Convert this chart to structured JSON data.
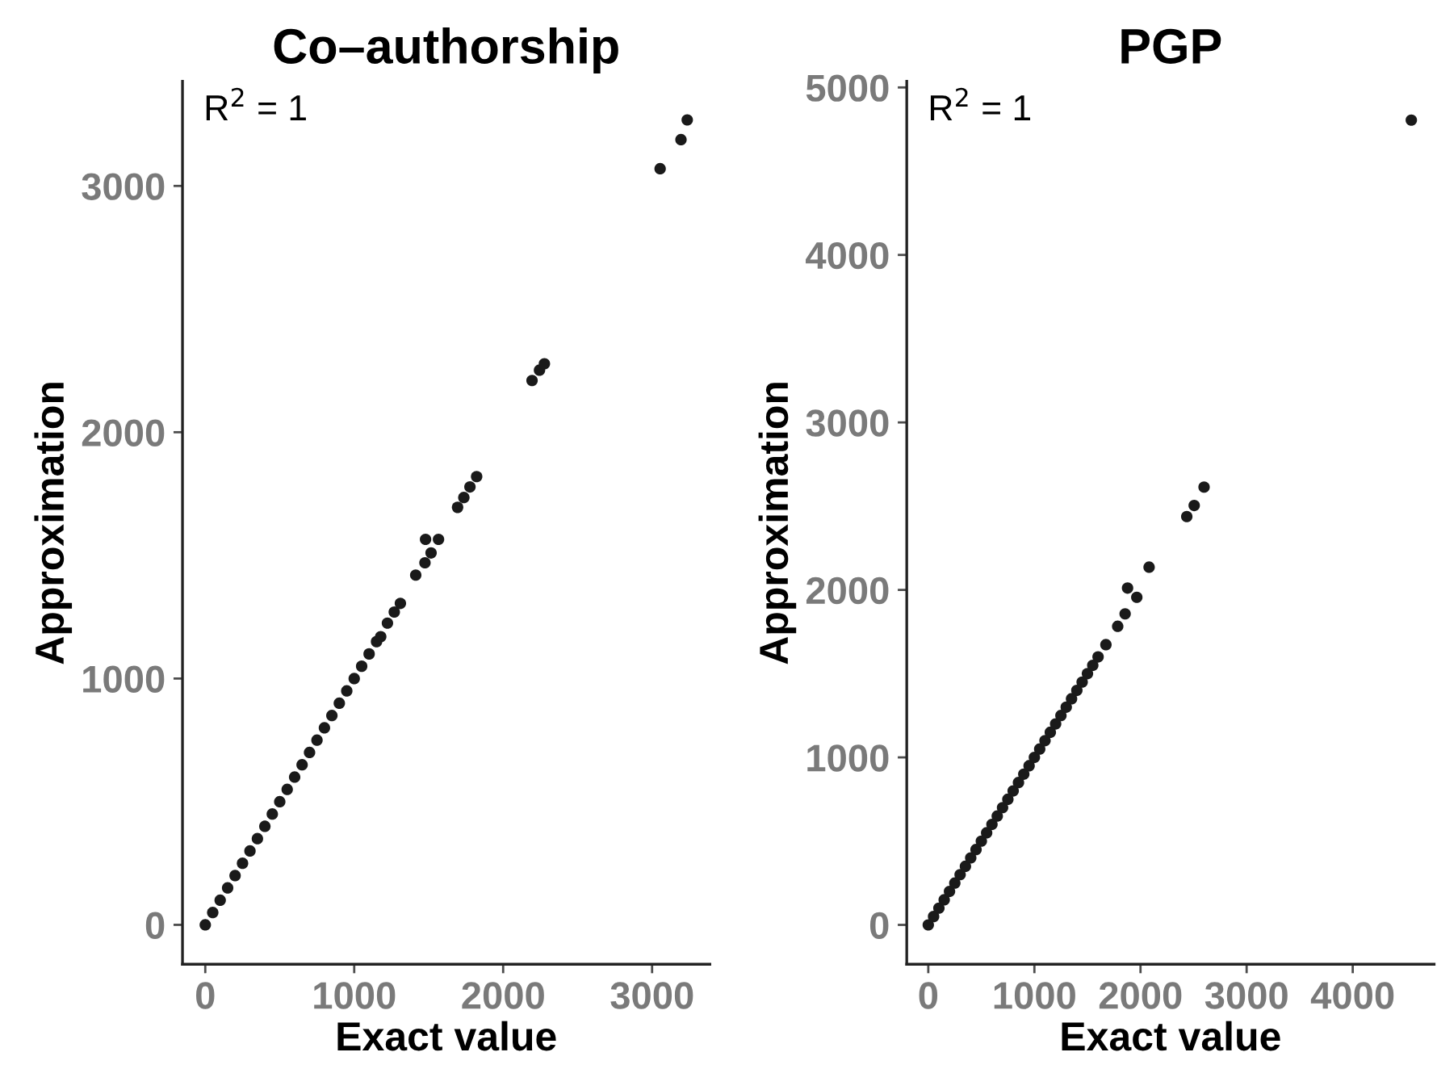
{
  "chart_data": [
    {
      "type": "scatter",
      "title": "Co–authorship",
      "xlabel": "Exact value",
      "ylabel": "Approximation",
      "annotations": [
        "R$^{2}$ = 1"
      ],
      "marker": "circle",
      "grid": false,
      "legend": false,
      "xlim": [
        -153,
        3388
      ],
      "ylim": [
        -160,
        3425
      ],
      "xticks": [
        0,
        1000,
        2000,
        3000
      ],
      "yticks": [
        0,
        1000,
        2000,
        3000
      ],
      "series": [
        {
          "color": "#1a1a1a",
          "x": [
            0,
            50,
            100,
            150,
            200,
            250,
            300,
            350,
            400,
            450,
            500,
            550,
            600,
            650,
            700,
            750,
            800,
            850,
            900,
            950,
            1000,
            1050,
            1100,
            1150,
            1178,
            1223,
            1269,
            1310,
            1413,
            1475,
            1516,
            1479,
            1566,
            1694,
            1736,
            1777,
            1822,
            2194,
            2244,
            2277,
            3054,
            3194,
            3236
          ],
          "values": [
            0,
            50,
            100,
            150,
            200,
            250,
            300,
            350,
            400,
            450,
            500,
            550,
            600,
            650,
            700,
            750,
            800,
            850,
            900,
            950,
            1000,
            1050,
            1100,
            1150,
            1170,
            1225,
            1270,
            1305,
            1420,
            1470,
            1510,
            1565,
            1565,
            1695,
            1735,
            1778,
            1820,
            2210,
            2252,
            2278,
            3070,
            3188,
            3268
          ]
        }
      ]
    },
    {
      "type": "scatter",
      "title": "PGP",
      "xlabel": "Exact value",
      "ylabel": "Approximation",
      "annotations": [
        "R$^{2}$ = 1"
      ],
      "marker": "circle",
      "grid": false,
      "legend": false,
      "xlim": [
        -203,
        4767
      ],
      "ylim": [
        -235,
        5037
      ],
      "xticks": [
        0,
        1000,
        2000,
        3000,
        4000
      ],
      "yticks": [
        0,
        1000,
        2000,
        3000,
        4000,
        5000
      ],
      "series": [
        {
          "color": "#1a1a1a",
          "x": [
            0,
            50,
            100,
            150,
            200,
            250,
            300,
            350,
            400,
            450,
            500,
            550,
            600,
            650,
            700,
            750,
            800,
            850,
            900,
            950,
            1000,
            1050,
            1100,
            1150,
            1200,
            1250,
            1300,
            1350,
            1400,
            1450,
            1500,
            1550,
            1600,
            1674,
            1785,
            1855,
            1965,
            1878,
            2081,
            2436,
            2506,
            2599,
            4552
          ],
          "values": [
            0,
            50,
            100,
            150,
            200,
            250,
            300,
            350,
            400,
            450,
            500,
            550,
            600,
            650,
            700,
            750,
            800,
            850,
            900,
            950,
            1000,
            1050,
            1100,
            1150,
            1200,
            1250,
            1300,
            1350,
            1400,
            1450,
            1500,
            1550,
            1600,
            1673,
            1783,
            1857,
            1956,
            2011,
            2136,
            2438,
            2504,
            2614,
            4805
          ]
        }
      ]
    }
  ]
}
